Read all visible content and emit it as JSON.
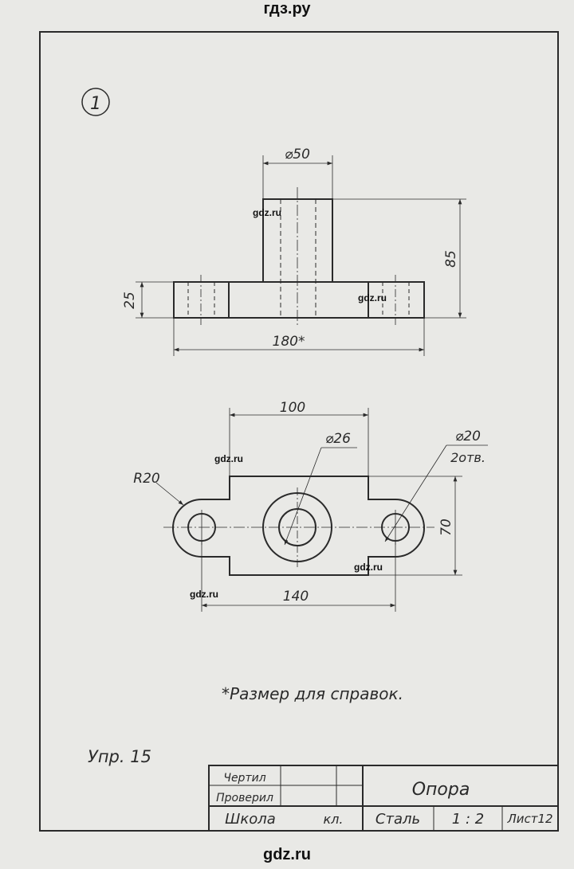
{
  "site": {
    "top": "гдз.ру",
    "bottom": "gdz.ru",
    "watermark": "gdz.ru"
  },
  "exercise_number": "1",
  "front_view": {
    "diameter": "⌀50",
    "height": "85",
    "base_height": "25",
    "width": "180*"
  },
  "top_view": {
    "length_top": "100",
    "center_hole": "⌀26",
    "side_holes": "⌀20",
    "side_holes_count": "2отв.",
    "radius": "R20",
    "height": "70",
    "hole_spacing": "140"
  },
  "note": "*Размер для справок.",
  "exercise_label": "Упр. 15",
  "title_block": {
    "drew": "Чертил",
    "checked": "Проверил",
    "school": "Школа",
    "class": "кл.",
    "part_name": "Опора",
    "material": "Сталь",
    "scale": "1 : 2",
    "sheet": "Лист12"
  },
  "colors": {
    "paper": "#e9e9e6",
    "ink": "#2a2a2a"
  }
}
